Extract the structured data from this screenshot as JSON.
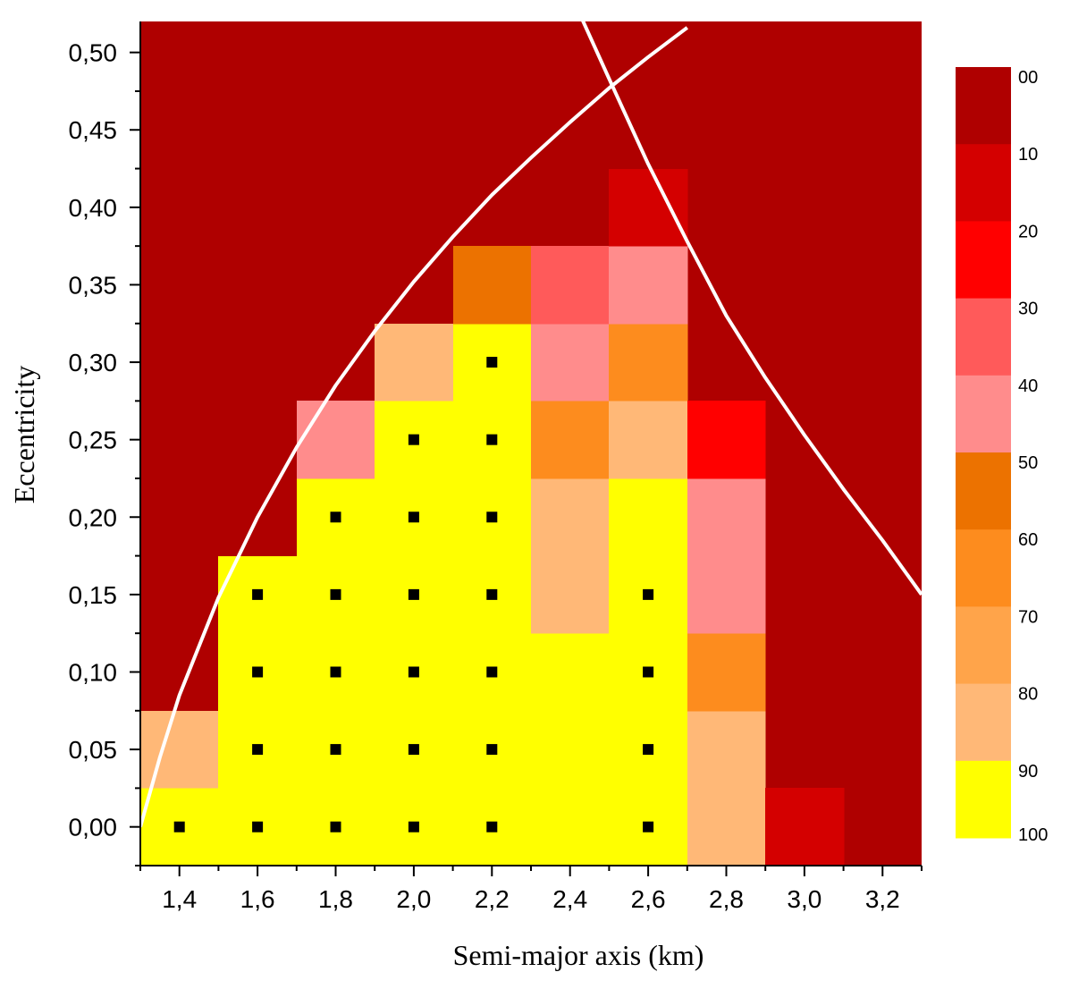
{
  "chart_data": {
    "type": "heatmap",
    "xlabel": "Semi-major  axis  (km)",
    "ylabel": "Eccentricity",
    "xlim": [
      1.3,
      3.3
    ],
    "ylim": [
      -0.025,
      0.52
    ],
    "x_ticks": [
      1.4,
      1.6,
      1.8,
      2.0,
      2.2,
      2.4,
      2.6,
      2.8,
      3.0,
      3.2
    ],
    "x_tick_labels": [
      "1,4",
      "1,6",
      "1,8",
      "2,0",
      "2,2",
      "2,4",
      "2,6",
      "2,8",
      "3,0",
      "3,2"
    ],
    "y_ticks": [
      0.0,
      0.05,
      0.1,
      0.15,
      0.2,
      0.25,
      0.3,
      0.35,
      0.4,
      0.45,
      0.5
    ],
    "y_tick_labels": [
      "0,00",
      "0,05",
      "0,10",
      "0,15",
      "0,20",
      "0,25",
      "0,30",
      "0,35",
      "0,40",
      "0,45",
      "0,50"
    ],
    "grid_x": [
      1.4,
      1.6,
      1.8,
      2.0,
      2.2,
      2.4,
      2.6,
      2.8,
      3.0,
      3.2
    ],
    "grid_y": [
      0.0,
      0.05,
      0.1,
      0.15,
      0.2,
      0.25,
      0.3,
      0.35,
      0.4,
      0.45,
      0.5
    ],
    "cell_size": {
      "dx": 0.2,
      "dy": 0.05
    },
    "background_value": 5,
    "cells": [
      {
        "x": 1.4,
        "y": 0.0,
        "v": 95
      },
      {
        "x": 1.4,
        "y": 0.05,
        "v": 85
      },
      {
        "x": 1.6,
        "y": 0.0,
        "v": 95
      },
      {
        "x": 1.6,
        "y": 0.05,
        "v": 95
      },
      {
        "x": 1.6,
        "y": 0.1,
        "v": 95
      },
      {
        "x": 1.6,
        "y": 0.15,
        "v": 95
      },
      {
        "x": 1.8,
        "y": 0.0,
        "v": 95
      },
      {
        "x": 1.8,
        "y": 0.05,
        "v": 95
      },
      {
        "x": 1.8,
        "y": 0.1,
        "v": 95
      },
      {
        "x": 1.8,
        "y": 0.15,
        "v": 95
      },
      {
        "x": 1.8,
        "y": 0.2,
        "v": 95
      },
      {
        "x": 1.8,
        "y": 0.25,
        "v": 45
      },
      {
        "x": 2.0,
        "y": 0.0,
        "v": 95
      },
      {
        "x": 2.0,
        "y": 0.05,
        "v": 95
      },
      {
        "x": 2.0,
        "y": 0.1,
        "v": 95
      },
      {
        "x": 2.0,
        "y": 0.15,
        "v": 95
      },
      {
        "x": 2.0,
        "y": 0.2,
        "v": 95
      },
      {
        "x": 2.0,
        "y": 0.25,
        "v": 95
      },
      {
        "x": 2.0,
        "y": 0.3,
        "v": 85
      },
      {
        "x": 2.2,
        "y": 0.0,
        "v": 95
      },
      {
        "x": 2.2,
        "y": 0.05,
        "v": 95
      },
      {
        "x": 2.2,
        "y": 0.1,
        "v": 95
      },
      {
        "x": 2.2,
        "y": 0.15,
        "v": 95
      },
      {
        "x": 2.2,
        "y": 0.2,
        "v": 95
      },
      {
        "x": 2.2,
        "y": 0.25,
        "v": 95
      },
      {
        "x": 2.2,
        "y": 0.3,
        "v": 95
      },
      {
        "x": 2.2,
        "y": 0.35,
        "v": 55
      },
      {
        "x": 2.4,
        "y": 0.0,
        "v": 95
      },
      {
        "x": 2.4,
        "y": 0.05,
        "v": 95
      },
      {
        "x": 2.4,
        "y": 0.1,
        "v": 95
      },
      {
        "x": 2.4,
        "y": 0.15,
        "v": 85
      },
      {
        "x": 2.4,
        "y": 0.2,
        "v": 85
      },
      {
        "x": 2.4,
        "y": 0.25,
        "v": 65
      },
      {
        "x": 2.4,
        "y": 0.3,
        "v": 45
      },
      {
        "x": 2.4,
        "y": 0.35,
        "v": 35
      },
      {
        "x": 2.6,
        "y": 0.0,
        "v": 95
      },
      {
        "x": 2.6,
        "y": 0.05,
        "v": 95
      },
      {
        "x": 2.6,
        "y": 0.1,
        "v": 95
      },
      {
        "x": 2.6,
        "y": 0.15,
        "v": 95
      },
      {
        "x": 2.6,
        "y": 0.2,
        "v": 95
      },
      {
        "x": 2.6,
        "y": 0.25,
        "v": 85
      },
      {
        "x": 2.6,
        "y": 0.3,
        "v": 65
      },
      {
        "x": 2.6,
        "y": 0.35,
        "v": 45
      },
      {
        "x": 2.6,
        "y": 0.4,
        "v": 15
      },
      {
        "x": 2.8,
        "y": 0.0,
        "v": 85
      },
      {
        "x": 2.8,
        "y": 0.05,
        "v": 85
      },
      {
        "x": 2.8,
        "y": 0.1,
        "v": 65
      },
      {
        "x": 2.8,
        "y": 0.15,
        "v": 45
      },
      {
        "x": 2.8,
        "y": 0.2,
        "v": 45
      },
      {
        "x": 2.8,
        "y": 0.25,
        "v": 25
      },
      {
        "x": 3.0,
        "y": 0.0,
        "v": 15
      }
    ],
    "markers": [
      {
        "x": 1.4,
        "y": 0.0
      },
      {
        "x": 1.6,
        "y": 0.0
      },
      {
        "x": 1.6,
        "y": 0.05
      },
      {
        "x": 1.6,
        "y": 0.1
      },
      {
        "x": 1.6,
        "y": 0.15
      },
      {
        "x": 1.8,
        "y": 0.0
      },
      {
        "x": 1.8,
        "y": 0.05
      },
      {
        "x": 1.8,
        "y": 0.1
      },
      {
        "x": 1.8,
        "y": 0.15
      },
      {
        "x": 1.8,
        "y": 0.2
      },
      {
        "x": 2.0,
        "y": 0.0
      },
      {
        "x": 2.0,
        "y": 0.05
      },
      {
        "x": 2.0,
        "y": 0.1
      },
      {
        "x": 2.0,
        "y": 0.15
      },
      {
        "x": 2.0,
        "y": 0.2
      },
      {
        "x": 2.0,
        "y": 0.25
      },
      {
        "x": 2.2,
        "y": 0.0
      },
      {
        "x": 2.2,
        "y": 0.05
      },
      {
        "x": 2.2,
        "y": 0.1
      },
      {
        "x": 2.2,
        "y": 0.15
      },
      {
        "x": 2.2,
        "y": 0.2
      },
      {
        "x": 2.2,
        "y": 0.25
      },
      {
        "x": 2.2,
        "y": 0.3
      },
      {
        "x": 2.6,
        "y": 0.0
      },
      {
        "x": 2.6,
        "y": 0.05
      },
      {
        "x": 2.6,
        "y": 0.1
      },
      {
        "x": 2.6,
        "y": 0.15
      }
    ],
    "curves": [
      {
        "color": "#ffffff",
        "points": [
          [
            1.3,
            0.0
          ],
          [
            1.35,
            0.045
          ],
          [
            1.4,
            0.085
          ],
          [
            1.5,
            0.148
          ],
          [
            1.6,
            0.2
          ],
          [
            1.7,
            0.245
          ],
          [
            1.8,
            0.285
          ],
          [
            1.9,
            0.32
          ],
          [
            2.0,
            0.352
          ],
          [
            2.1,
            0.381
          ],
          [
            2.2,
            0.408
          ],
          [
            2.3,
            0.432
          ],
          [
            2.4,
            0.455
          ],
          [
            2.5,
            0.477
          ],
          [
            2.6,
            0.497
          ],
          [
            2.7,
            0.516
          ]
        ]
      },
      {
        "color": "#ffffff",
        "points": [
          [
            2.43,
            0.522
          ],
          [
            2.5,
            0.483
          ],
          [
            2.6,
            0.428
          ],
          [
            2.7,
            0.378
          ],
          [
            2.8,
            0.33
          ],
          [
            2.9,
            0.29
          ],
          [
            3.0,
            0.253
          ],
          [
            3.1,
            0.218
          ],
          [
            3.2,
            0.185
          ],
          [
            3.3,
            0.15
          ]
        ]
      }
    ],
    "colorbar": {
      "levels": [
        0,
        10,
        20,
        30,
        40,
        50,
        60,
        70,
        80,
        90,
        100
      ],
      "labels": [
        "00",
        "10",
        "20",
        "30",
        "40",
        "50",
        "60",
        "70",
        "80",
        "90",
        "100"
      ],
      "colors": [
        "#af0000",
        "#d40000",
        "#ff0000",
        "#ff5a5a",
        "#ff8c8c",
        "#ec7200",
        "#fd8c1e",
        "#ffa44a",
        "#ffb877",
        "#ffff00"
      ]
    }
  }
}
